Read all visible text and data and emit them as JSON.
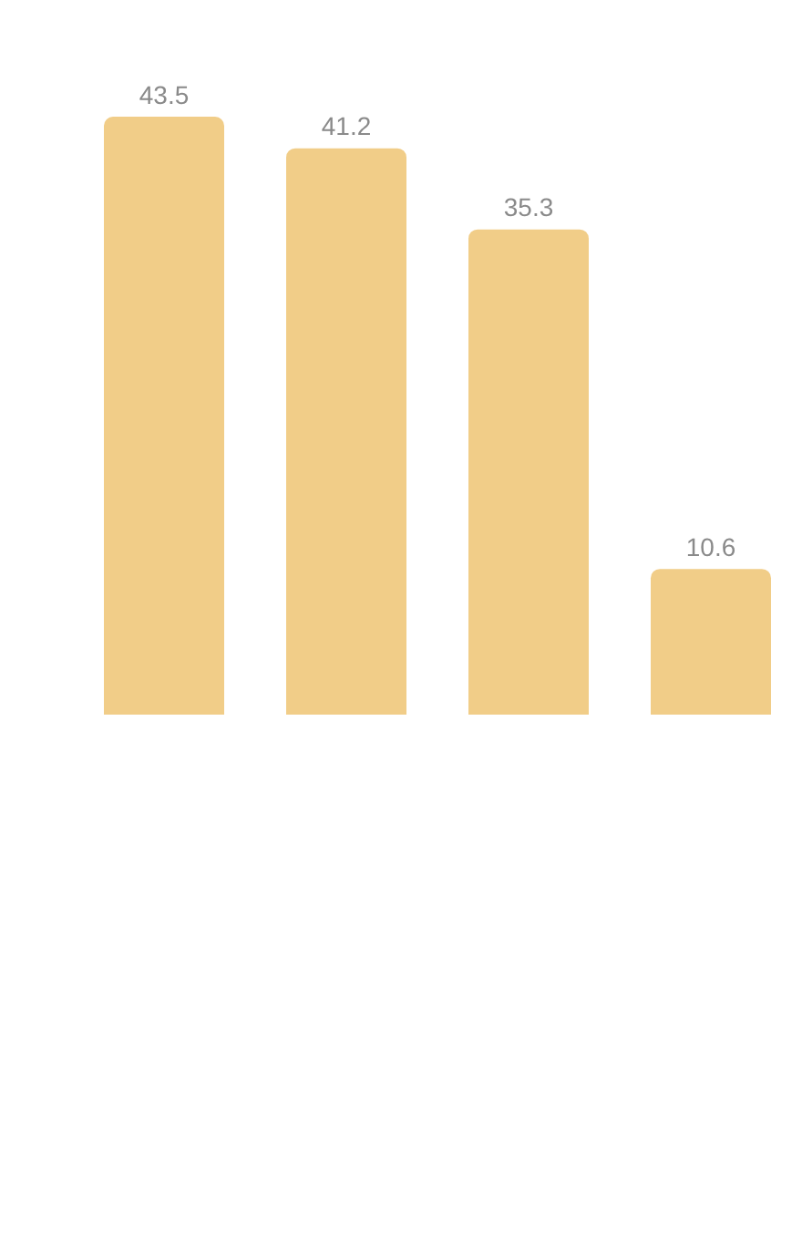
{
  "chart_data": {
    "type": "bar",
    "categories": [
      null,
      null,
      null,
      null
    ],
    "values": [
      43.5,
      41.2,
      35.3,
      10.6
    ],
    "color": "#f1cd88",
    "data_labels": true,
    "grid": false,
    "legend": false
  }
}
